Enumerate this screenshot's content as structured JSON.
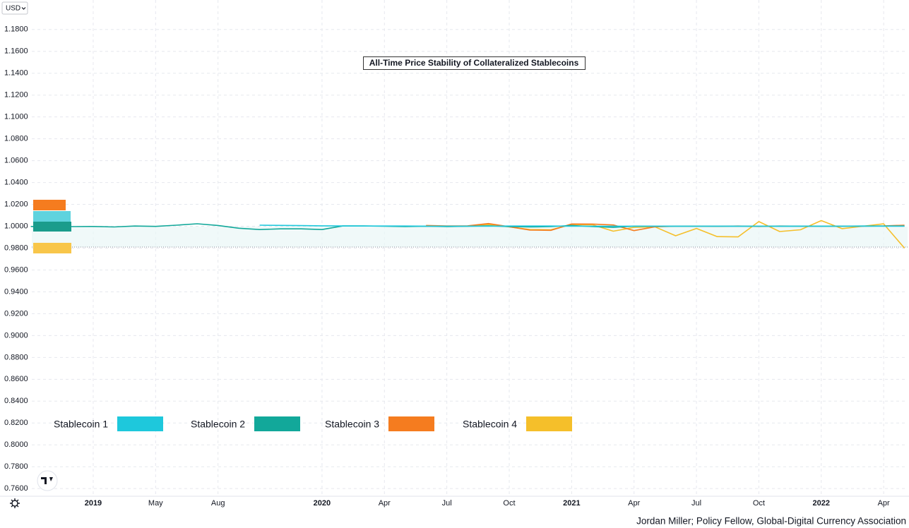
{
  "chart_data": {
    "type": "line",
    "title": "All-Time Price Stability of Collateralized Stablecoins",
    "currency_label": "USD",
    "caption": "Jordan Miller; Policy Fellow, Global-Digital Currency Association",
    "x": [
      -3,
      -2,
      -1,
      0,
      1,
      2,
      3,
      4,
      5,
      6,
      7,
      8,
      9,
      10,
      11,
      12,
      13,
      14,
      15,
      16,
      17,
      18,
      19,
      20,
      21,
      22,
      23,
      24,
      25,
      26,
      27,
      28,
      29,
      30,
      31,
      32,
      33,
      34,
      35,
      36,
      37,
      38,
      39
    ],
    "xlim": [
      -4.48,
      39.15
    ],
    "xticks": [
      {
        "value": 0,
        "label": "2019"
      },
      {
        "value": 3,
        "label": "May"
      },
      {
        "value": 6,
        "label": "Aug"
      },
      {
        "value": 11,
        "label": "2020"
      },
      {
        "value": 14,
        "label": "Apr"
      },
      {
        "value": 17,
        "label": "Jul"
      },
      {
        "value": 20,
        "label": "Oct"
      },
      {
        "value": 23,
        "label": "2021"
      },
      {
        "value": 26,
        "label": "Apr"
      },
      {
        "value": 29,
        "label": "Jul"
      },
      {
        "value": 32,
        "label": "Oct"
      },
      {
        "value": 35,
        "label": "2022"
      },
      {
        "value": 38,
        "label": "Apr"
      }
    ],
    "ylim": [
      0.753,
      1.207
    ],
    "yticks": [
      {
        "value": 0.76,
        "label": "0.7600"
      },
      {
        "value": 0.78,
        "label": "0.7800"
      },
      {
        "value": 0.8,
        "label": "0.8000"
      },
      {
        "value": 0.82,
        "label": "0.8200"
      },
      {
        "value": 0.84,
        "label": "0.8400"
      },
      {
        "value": 0.86,
        "label": "0.8600"
      },
      {
        "value": 0.88,
        "label": "0.8800"
      },
      {
        "value": 0.9,
        "label": "0.9000"
      },
      {
        "value": 0.92,
        "label": "0.9200"
      },
      {
        "value": 0.94,
        "label": "0.9400"
      },
      {
        "value": 0.96,
        "label": "0.9600"
      },
      {
        "value": 0.98,
        "label": "0.9800"
      },
      {
        "value": 1.0,
        "label": "1.0000"
      },
      {
        "value": 1.02,
        "label": "1.0200"
      },
      {
        "value": 1.04,
        "label": "1.0400"
      },
      {
        "value": 1.06,
        "label": "1.0600"
      },
      {
        "value": 1.08,
        "label": "1.0800"
      },
      {
        "value": 1.1,
        "label": "1.1000"
      },
      {
        "value": 1.12,
        "label": "1.1200"
      },
      {
        "value": 1.14,
        "label": "1.1400"
      },
      {
        "value": 1.16,
        "label": "1.1600"
      },
      {
        "value": 1.18,
        "label": "1.1800"
      }
    ],
    "grid": true,
    "series": [
      {
        "name": "Stablecoin 1",
        "color": "#1ec8dc",
        "values": [
          null,
          null,
          null,
          null,
          null,
          null,
          null,
          null,
          null,
          null,
          null,
          1.001,
          1.0008,
          1.0006,
          1.0004,
          1.0003,
          1.0002,
          1.0002,
          1.0002,
          1.0001,
          1.0001,
          1.0001,
          1.0001,
          1.0002,
          1.0002,
          1.0002,
          1.0001,
          1.0001,
          1.0001,
          1.0001,
          1.0001,
          1.0001,
          1.0001,
          1.0001,
          1.0001,
          1.0001,
          1.0001,
          1.0001,
          1.0001,
          1.0001,
          1.0001,
          1.0001,
          1.0001
        ]
      },
      {
        "name": "Stablecoin 2",
        "color": "#12a89a",
        "values": [
          0.9998,
          0.9998,
          0.9997,
          0.9998,
          0.9994,
          1.0002,
          0.9999,
          1.001,
          1.0023,
          1.0007,
          0.9982,
          0.997,
          0.9976,
          0.9976,
          0.997,
          1.0003,
          1.0003,
          1.0,
          0.9997,
          1.0,
          0.9997,
          1.0,
          1.0004,
          0.9997,
          0.9994,
          0.9997,
          1.0007,
          0.9997,
          0.999,
          1.0001,
          1.0,
          1.0,
          1.0,
          1.0,
          1.0,
          1.0,
          1.0001,
          1.0001,
          1.0001,
          1.0001,
          1.0002,
          1.0002,
          1.0002
        ]
      },
      {
        "name": "Stablecoin 3",
        "color": "#f57c1f",
        "values": [
          null,
          null,
          null,
          null,
          null,
          null,
          null,
          null,
          null,
          null,
          null,
          null,
          null,
          null,
          null,
          null,
          null,
          null,
          null,
          1.0007,
          1.0003,
          1.0004,
          1.0025,
          0.9996,
          0.9965,
          0.9963,
          1.0021,
          1.002,
          1.0012,
          0.996,
          0.9995,
          1.0,
          1.0001,
          0.9999,
          1.0002,
          0.9998,
          1.0002,
          1.0001,
          1.0,
          1.0001,
          1.0,
          1.0003,
          1.001
        ]
      },
      {
        "name": "Stablecoin 4",
        "color": "#f5bf2a",
        "values": [
          null,
          null,
          null,
          null,
          null,
          null,
          null,
          null,
          null,
          null,
          null,
          null,
          null,
          null,
          null,
          null,
          null,
          null,
          null,
          1.0003,
          0.9998,
          1.0,
          1.0015,
          0.9995,
          0.997,
          0.9968,
          1.0015,
          1.0014,
          0.9955,
          0.999,
          0.9995,
          0.9913,
          0.998,
          0.9905,
          0.9903,
          1.0043,
          0.9952,
          0.9968,
          1.0052,
          0.9978,
          1.0,
          1.0022,
          0.98
        ]
      }
    ]
  }
}
